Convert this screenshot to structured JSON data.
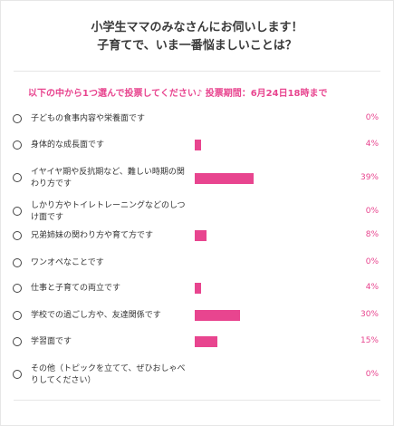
{
  "survey": {
    "title_line1": "小学生ママのみなさんにお伺いします！",
    "title_line2": "子育てで、いま一番悩ましいことは？",
    "instruction": "以下の中から1つ選んで投票してください♪ 投票期間：6月24日18時まで",
    "accent_color": "#e8458f",
    "options": [
      {
        "label": "子どもの食事内容や栄養面です",
        "percent": 0,
        "percent_label": "0%"
      },
      {
        "label": "身体的な成長面です",
        "percent": 4,
        "percent_label": "4%"
      },
      {
        "label": "イヤイヤ期や反抗期など、難しい時期の関わり方です",
        "percent": 39,
        "percent_label": "39%"
      },
      {
        "label": "しかり方やトイレトレーニングなどのしつけ面です",
        "percent": 0,
        "percent_label": "0%"
      },
      {
        "label": "兄弟姉妹の関わり方や育て方です",
        "percent": 8,
        "percent_label": "8%"
      },
      {
        "label": "ワンオペなことです",
        "percent": 0,
        "percent_label": "0%"
      },
      {
        "label": "仕事と子育ての両立です",
        "percent": 4,
        "percent_label": "4%"
      },
      {
        "label": "学校での過ごし方や、友達関係です",
        "percent": 30,
        "percent_label": "30%"
      },
      {
        "label": "学習面です",
        "percent": 15,
        "percent_label": "15%"
      },
      {
        "label": "その他（トピックを立てて、ぜひおしゃべりしてください）",
        "percent": 0,
        "percent_label": "0%"
      }
    ]
  }
}
